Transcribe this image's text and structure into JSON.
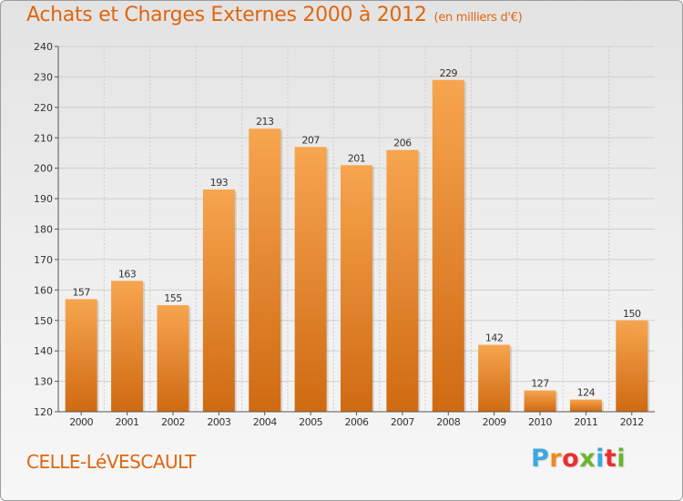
{
  "header": {
    "title": "Achats et Charges Externes 2000 à 2012",
    "unit": "(en milliers d'€)"
  },
  "footer": {
    "commune": "CELLE-LéVESCAULT",
    "logo": "Proxiti"
  },
  "logo_colors": [
    "#3aa9df",
    "#f08a1c",
    "#e8312f",
    "#6cb52d",
    "#3aa9df",
    "#e8312f",
    "#6cb52d"
  ],
  "colors": {
    "bar_top": "#f7a54f",
    "bar_bottom": "#cf6a12",
    "text_orange": "#e0660f",
    "grid": "#cfcfcf"
  },
  "chart_data": {
    "type": "bar",
    "title": "Achats et Charges Externes 2000 à 2012",
    "subtitle": "(en milliers d'€)",
    "xlabel": "",
    "ylabel": "",
    "categories": [
      "2000",
      "2001",
      "2002",
      "2003",
      "2004",
      "2005",
      "2006",
      "2007",
      "2008",
      "2009",
      "2010",
      "2011",
      "2012"
    ],
    "values": [
      157,
      163,
      155,
      193,
      213,
      207,
      201,
      206,
      229,
      142,
      127,
      124,
      150
    ],
    "ylim": [
      120,
      240
    ],
    "yticks": [
      120,
      130,
      140,
      150,
      160,
      170,
      180,
      190,
      200,
      210,
      220,
      230,
      240
    ],
    "grid": true,
    "legend": "none"
  }
}
